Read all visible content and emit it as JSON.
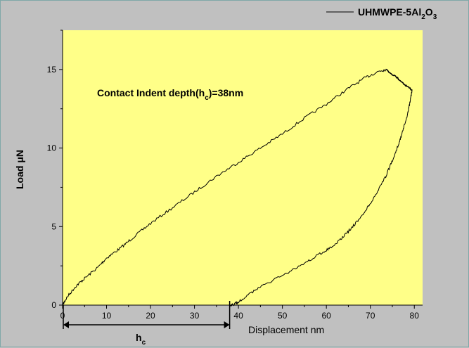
{
  "chart_data": {
    "type": "line",
    "xlabel": "Displacement nm",
    "ylabel": "Load μN",
    "xlim": [
      0,
      80
    ],
    "ylim": [
      0,
      17.5
    ],
    "xticks": [
      "0",
      "10",
      "20",
      "30",
      "40",
      "50",
      "60",
      "70",
      "80"
    ],
    "yticks": [
      "0",
      "5",
      "10",
      "15"
    ],
    "legend_placement": "top-right",
    "plot_background": "#ffff88",
    "line_color": "#000000",
    "series": [
      {
        "name": "UHMWPE-5Al₂O₃",
        "loading": {
          "x": [
            0,
            1,
            3,
            5,
            8,
            10,
            13,
            16,
            20,
            25,
            30,
            35,
            40,
            45,
            50,
            55,
            60,
            65,
            69,
            72,
            73.5
          ],
          "y": [
            0,
            0.5,
            1.2,
            1.7,
            2.4,
            3.0,
            3.6,
            4.3,
            5.2,
            6.2,
            7.2,
            8.2,
            9.1,
            10.0,
            10.9,
            11.9,
            12.8,
            13.8,
            14.5,
            14.9,
            15.0
          ]
        },
        "holding": {
          "x": [
            73.5,
            76,
            78,
            79.5
          ],
          "y": [
            15.0,
            14.5,
            14.0,
            13.7
          ]
        },
        "unloading": {
          "x": [
            79.5,
            79,
            78.5,
            77.5,
            76.5,
            75,
            73.5,
            72,
            70,
            68,
            66,
            64,
            62,
            60,
            57,
            54,
            50,
            46,
            43,
            40.5,
            39,
            38
          ],
          "y": [
            13.7,
            12.9,
            12.2,
            11.2,
            10.3,
            9.2,
            8.2,
            7.4,
            6.5,
            5.6,
            5.0,
            4.4,
            3.9,
            3.5,
            3.0,
            2.5,
            1.9,
            1.3,
            0.8,
            0.3,
            0.05,
            0
          ]
        }
      }
    ],
    "annotations": {
      "contact_text_a": "Contact Indent depth(h",
      "contact_text_sub": "c",
      "contact_text_b": ")=38nm",
      "hc_label": "h",
      "hc_sub": "c",
      "hc_range": [
        0,
        38
      ]
    }
  },
  "legend": {
    "text_a": "UHMWPE-5Al",
    "sub_1": "2",
    "text_b": "O",
    "sub_2": "3"
  }
}
